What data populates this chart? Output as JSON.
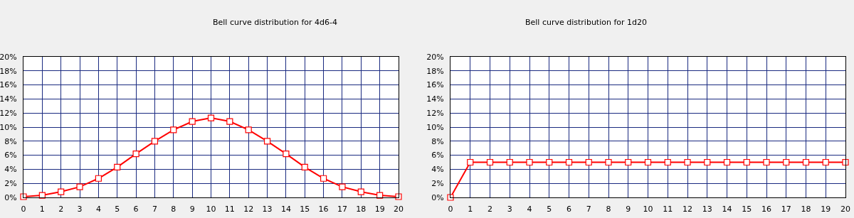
{
  "chart_data": [
    {
      "type": "line",
      "title": "Bell curve distribution for 4d6-4",
      "x": [
        0,
        1,
        2,
        3,
        4,
        5,
        6,
        7,
        8,
        9,
        10,
        11,
        12,
        13,
        14,
        15,
        16,
        17,
        18,
        19,
        20
      ],
      "series": [
        {
          "color": "#ff0000",
          "values": [
            0.1,
            0.3,
            0.8,
            1.5,
            2.7,
            4.3,
            6.2,
            8.0,
            9.6,
            10.8,
            11.3,
            10.8,
            9.6,
            8.0,
            6.2,
            4.3,
            2.7,
            1.5,
            0.8,
            0.3,
            0.1
          ]
        }
      ],
      "xlim": [
        0,
        20
      ],
      "xticks": [
        0,
        1,
        2,
        3,
        4,
        5,
        6,
        7,
        8,
        9,
        10,
        11,
        12,
        13,
        14,
        15,
        16,
        17,
        18,
        19,
        20
      ],
      "ylim": [
        0,
        20
      ],
      "yticks": [
        {
          "value": 0,
          "label": "0%"
        },
        {
          "value": 2,
          "label": "2%"
        },
        {
          "value": 4,
          "label": "4%"
        },
        {
          "value": 6,
          "label": "6%"
        },
        {
          "value": 8,
          "label": "8%"
        },
        {
          "value": 10,
          "label": "10%"
        },
        {
          "value": 12,
          "label": "12%"
        },
        {
          "value": 14,
          "label": "14%"
        },
        {
          "value": 16,
          "label": "16%"
        },
        {
          "value": 18,
          "label": "18%"
        },
        {
          "value": 20,
          "label": "20%"
        }
      ],
      "grid": true,
      "marker": "square",
      "line_style": "solid"
    },
    {
      "type": "line",
      "title": "Bell curve distribution for 1d20",
      "x": [
        0,
        1,
        2,
        3,
        4,
        5,
        6,
        7,
        8,
        9,
        10,
        11,
        12,
        13,
        14,
        15,
        16,
        17,
        18,
        19,
        20
      ],
      "series": [
        {
          "color": "#ff0000",
          "values": [
            0,
            5,
            5,
            5,
            5,
            5,
            5,
            5,
            5,
            5,
            5,
            5,
            5,
            5,
            5,
            5,
            5,
            5,
            5,
            5,
            5
          ]
        }
      ],
      "xlim": [
        0,
        20
      ],
      "xticks": [
        0,
        1,
        2,
        3,
        4,
        5,
        6,
        7,
        8,
        9,
        10,
        11,
        12,
        13,
        14,
        15,
        16,
        17,
        18,
        19,
        20
      ],
      "ylim": [
        0,
        20
      ],
      "yticks": [
        {
          "value": 0,
          "label": "0%"
        },
        {
          "value": 2,
          "label": "2%"
        },
        {
          "value": 4,
          "label": "4%"
        },
        {
          "value": 6,
          "label": "6%"
        },
        {
          "value": 8,
          "label": "8%"
        },
        {
          "value": 10,
          "label": "10%"
        },
        {
          "value": 12,
          "label": "12%"
        },
        {
          "value": 14,
          "label": "14%"
        },
        {
          "value": 16,
          "label": "16%"
        },
        {
          "value": 18,
          "label": "18%"
        },
        {
          "value": 20,
          "label": "20%"
        }
      ],
      "grid": true,
      "marker": "square",
      "line_style": "solid"
    }
  ]
}
